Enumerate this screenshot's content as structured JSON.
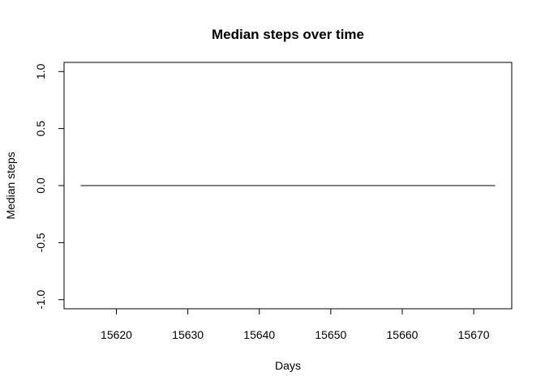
{
  "chart_data": {
    "type": "line",
    "title": "Median steps over time",
    "xlabel": "Days",
    "ylabel": "Median steps",
    "xlim": [
      15612.68,
      15675.32
    ],
    "ylim": [
      -1.08,
      1.08
    ],
    "x_ticks": [
      15620,
      15630,
      15640,
      15650,
      15660,
      15670
    ],
    "y_ticks": [
      -1.0,
      -0.5,
      0.0,
      0.5,
      1.0
    ],
    "y_tick_labels": [
      "-1.0",
      "-0.5",
      "0.0",
      "0.5",
      "1.0"
    ],
    "series": [
      {
        "x": [
          15615,
          15673
        ],
        "y": [
          0,
          0
        ],
        "color": "#000000"
      }
    ],
    "grid": false,
    "legend": "none"
  }
}
